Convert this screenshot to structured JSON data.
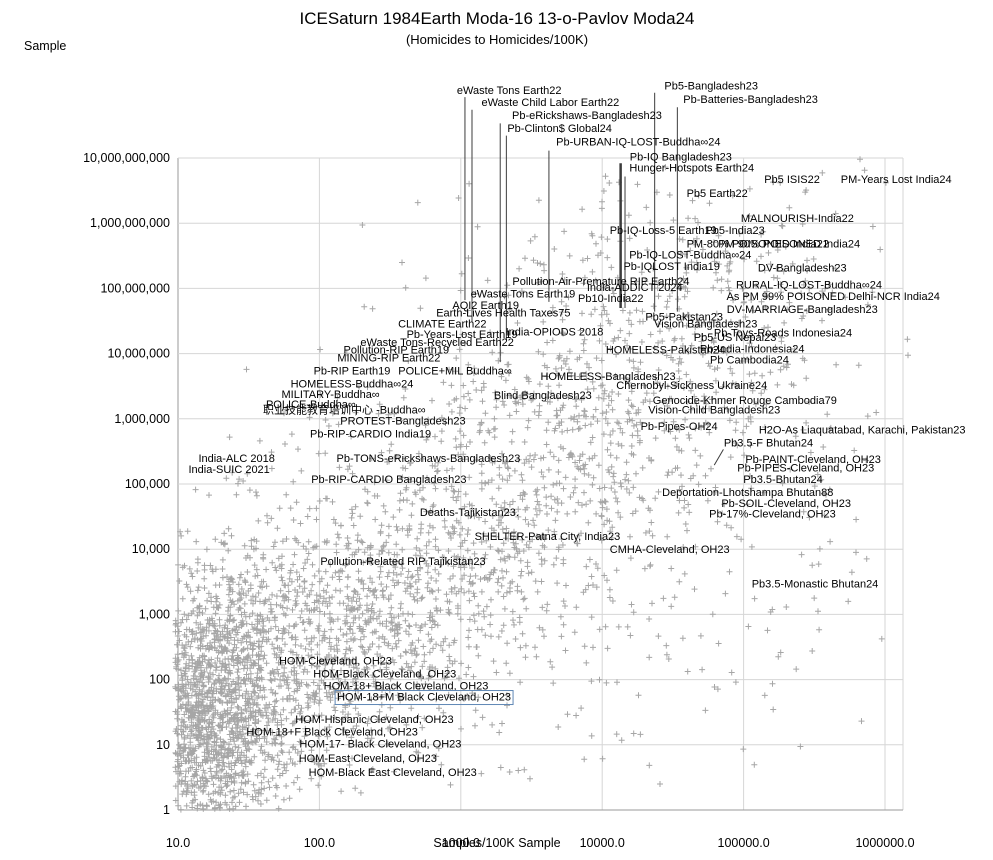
{
  "title": "ICESaturn 1984Earth Moda-16 13-o-Pavlov Moda24",
  "subtitle": "(Homicides to Homicides/100K)",
  "y_axis_title": "Sample",
  "x_axis_title": "Samples/100K Sample",
  "chart_data": {
    "type": "scatter",
    "x_scale": "log",
    "y_scale": "log",
    "x_range": [
      10,
      1000000
    ],
    "y_range": [
      1,
      10000000000
    ],
    "grid": true,
    "legend": "none",
    "x_ticks": [
      "10.0",
      "100.0",
      "1000.0",
      "10000.0",
      "100000.0",
      "1000000.0"
    ],
    "y_ticks": [
      "1",
      "10",
      "100",
      "1,000",
      "10,000",
      "100,000",
      "1,000,000",
      "10,000,000",
      "100,000,000",
      "1,000,000,000",
      "10,000,000,000"
    ],
    "marker": {
      "shape": "plus",
      "color": "#a6a6a6",
      "size": 7
    },
    "colors": {
      "grid": "#d6d6d6",
      "axis": "#9a9a9a",
      "annotation": "#222222",
      "leader": "#3c3c3c",
      "selection_box": "#5f87b5"
    },
    "point_cloud": {
      "seed": 1234,
      "bounds": {
        "lx": [
          0.98,
          6.18
        ],
        "ly": [
          0.0,
          10.05
        ]
      },
      "clusters": [
        {
          "n": 1600,
          "cx": 1.22,
          "cy": 1.4,
          "sx": 0.28,
          "sy": 1.05
        },
        {
          "n": 650,
          "cx": 1.8,
          "cy": 2.3,
          "sx": 0.45,
          "sy": 0.9
        },
        {
          "n": 550,
          "cx": 2.5,
          "cy": 3.2,
          "sx": 0.55,
          "sy": 1.0
        },
        {
          "n": 420,
          "cx": 3.2,
          "cy": 4.4,
          "sx": 0.6,
          "sy": 1.1
        },
        {
          "n": 330,
          "cx": 3.9,
          "cy": 5.8,
          "sx": 0.6,
          "sy": 1.2
        },
        {
          "n": 240,
          "cx": 4.5,
          "cy": 7.0,
          "sx": 0.55,
          "sy": 1.1
        },
        {
          "n": 120,
          "cx": 5.1,
          "cy": 8.0,
          "sx": 0.5,
          "sy": 0.9
        },
        {
          "n": 90,
          "cx": 4.2,
          "cy": 2.6,
          "sx": 0.8,
          "sy": 1.2
        },
        {
          "n": 60,
          "cx": 5.3,
          "cy": 5.0,
          "sx": 0.5,
          "sy": 1.2
        },
        {
          "n": 60,
          "cx": 2.9,
          "cy": 6.3,
          "sx": 0.8,
          "sy": 0.8
        },
        {
          "n": 40,
          "cx": 1.3,
          "cy": 4.3,
          "sx": 0.3,
          "sy": 0.9
        },
        {
          "n": 30,
          "cx": 3.7,
          "cy": 8.8,
          "sx": 0.55,
          "sy": 0.6
        }
      ]
    },
    "annotations": [
      {
        "t": "eWaste Tons Earth22",
        "x": 2200,
        "y": 110000000000.0,
        "leader": [
          1070,
          86000000000.0,
          66000000.0
        ]
      },
      {
        "t": "eWaste Child Labor Earth22",
        "x": 4300,
        "y": 72000000000.0,
        "leader": [
          1200,
          55000000000.0,
          31000000.0
        ]
      },
      {
        "t": "Pb-eRickshaws-Bangladesh23",
        "x": 7800,
        "y": 46000000000.0,
        "leader": [
          1900,
          34000000000.0,
          7400000.0
        ]
      },
      {
        "t": "Pb-Clinton$ Global24",
        "x": 5000,
        "y": 29000000000.0,
        "leader": [
          2100,
          22000000000.0,
          16000000.0
        ]
      },
      {
        "t": "Pb-URBAN-IQ-LOST-Buddha∞24",
        "x": 18000,
        "y": 18000000000.0,
        "leader": [
          4200,
          13000000000.0,
          62000000.0
        ]
      },
      {
        "t": "Pb5-Bangladesh23",
        "x": 59000,
        "y": 130000000000.0,
        "leader": [
          23500,
          100000000000.0,
          44000000.0
        ]
      },
      {
        "t": "Pb-Batteries-Bangladesh23",
        "x": 112000,
        "y": 81000000000.0,
        "leader": [
          34000,
          60000000000.0,
          44000000.0
        ]
      },
      {
        "t": "Pb-IQ Bangladesh23",
        "x": 36000,
        "y": 10500000000.0,
        "leader": [
          13500,
          8300000000.0,
          50000000.0
        ],
        "leader_w": 2.5
      },
      {
        "t": "Hunger-Hotspots Earth24",
        "x": 43000,
        "y": 7100000000.0,
        "leader": [
          14500,
          5200000000.0,
          50000000.0
        ]
      },
      {
        "t": "Pb5 ISIS22",
        "x": 220000,
        "y": 4800000000.0
      },
      {
        "t": "PM-Years Lost India24",
        "x": 1200000,
        "y": 4800000000.0
      },
      {
        "t": "Pb5 Earth22",
        "x": 65000,
        "y": 2900000000.0
      },
      {
        "t": "MALNOURISH-India22",
        "x": 240000,
        "y": 1200000000.0
      },
      {
        "t": "Pb-IQ-Loss-5 Earth19",
        "x": 27000,
        "y": 780000000.0
      },
      {
        "t": "Pb5-India23",
        "x": 87000,
        "y": 780000000.0
      },
      {
        "t": "PM-80% POISONED India22",
        "x": 126000,
        "y": 490000000.0
      },
      {
        "t": "PM 90% POISONED India24",
        "x": 210000,
        "y": 490000000.0
      },
      {
        "t": "Pb-IQ-LOST-Buddha∞24",
        "x": 42000,
        "y": 330000000.0
      },
      {
        "t": "DV-Bangladesh23",
        "x": 260000,
        "y": 210000000.0
      },
      {
        "t": "Pb-IQLOST India19",
        "x": 31000,
        "y": 220000000.0
      },
      {
        "t": "Pollution-Air-Premature RIP Earth24",
        "x": 9800,
        "y": 130000000.0
      },
      {
        "t": "RURAL-IQ-LOST-Buddha∞24",
        "x": 290000,
        "y": 115000000.0
      },
      {
        "t": "India-ADDICT 2024",
        "x": 17000,
        "y": 105000000.0
      },
      {
        "t": "As PM 99% POISONED Delhi-NCR India24",
        "x": 430000,
        "y": 76000000.0
      },
      {
        "t": "eWaste Tons Earth19",
        "x": 2750,
        "y": 83000000.0
      },
      {
        "t": "Pb10-India22",
        "x": 11500,
        "y": 71000000.0
      },
      {
        "t": "AQI2 Earth19",
        "x": 1500,
        "y": 56000000.0
      },
      {
        "t": "DV-MARRIAGE-Bangladesh23",
        "x": 260000,
        "y": 48000000.0
      },
      {
        "t": "Earth-Lives Health Taxes75",
        "x": 2000,
        "y": 43000000.0
      },
      {
        "t": "Pb5-Pakistan23",
        "x": 38000,
        "y": 37000000.0
      },
      {
        "t": "CLIMATE Earth22",
        "x": 740,
        "y": 29000000.0
      },
      {
        "t": "Vision Bangladesh23",
        "x": 54000,
        "y": 29000000.0
      },
      {
        "t": "Pb-Toys-Roads Indonesia24",
        "x": 190000,
        "y": 21000000.0
      },
      {
        "t": "Pb-Years-Lost Earth19",
        "x": 1020,
        "y": 20000000.0
      },
      {
        "t": "India-OPIODS 2018",
        "x": 4600,
        "y": 22000000.0
      },
      {
        "t": "Pb5-US Nepal23",
        "x": 87000,
        "y": 18000000.0
      },
      {
        "t": "eWaste Tons-Recycled Earth22",
        "x": 680,
        "y": 15000000.0
      },
      {
        "t": "Pollution-RIP Earth19",
        "x": 350,
        "y": 11500000.0
      },
      {
        "t": "HOMELESS-Pakistan24",
        "x": 28000,
        "y": 11500000.0
      },
      {
        "t": "Pb-India-Indonesia24",
        "x": 115000,
        "y": 12000000.0
      },
      {
        "t": "MINING-RIP Earth22",
        "x": 310,
        "y": 8700000.0
      },
      {
        "t": "Pb Cambodia24",
        "x": 110000,
        "y": 8100000.0
      },
      {
        "t": "Pb-RIP Earth19",
        "x": 170,
        "y": 5500000.0
      },
      {
        "t": "POLICE+MIL Buddha∞",
        "x": 910,
        "y": 5500000.0
      },
      {
        "t": "HOMELESS-Bangladesh23",
        "x": 11000,
        "y": 4500000.0
      },
      {
        "t": "HOMELESS-Buddha∞24",
        "x": 170,
        "y": 3500000.0
      },
      {
        "t": "Chernobyl-Sickness Ukraine24",
        "x": 43000,
        "y": 3300000.0
      },
      {
        "t": "MILITARY-Buddha∞",
        "x": 120,
        "y": 2400000.0
      },
      {
        "t": "Blind Bangladesh23",
        "x": 3800,
        "y": 2300000.0
      },
      {
        "t": "POLICE-Buddha∞",
        "x": 87,
        "y": 1700000.0
      },
      {
        "t": "Genocide-Khmer Rouge Cambodia79",
        "x": 102000,
        "y": 1950000.0
      },
      {
        "t": "职业技能教育培训中心 -Buddha∞",
        "x": 150,
        "y": 1400000.0
      },
      {
        "t": "Vision-Child Bangladesh23",
        "x": 62000,
        "y": 1400000.0
      },
      {
        "t": "PROTEST-Bangladesh23",
        "x": 390,
        "y": 950000.0
      },
      {
        "t": "Pb-Pipes-OH24",
        "x": 35000,
        "y": 780000.0
      },
      {
        "t": "H2O-As Liaquatabad, Karachi, Pakistan23",
        "x": 690000,
        "y": 680000.0
      },
      {
        "t": "Pb-RIP-CARDIO India19",
        "x": 230,
        "y": 600000.0
      },
      {
        "t": "Pb3.5-F Bhutan24",
        "x": 150000,
        "y": 430000.0
      },
      {
        "t": "India-ALC 2018",
        "x": 26,
        "y": 250000.0
      },
      {
        "t": "Pb-TONS-eRickshaws-Bangladesh23",
        "x": 590,
        "y": 250000.0
      },
      {
        "t": "Pb-PAINT-Cleveland, OH23",
        "x": 310000,
        "y": 240000.0,
        "dleader": [
          62000,
          195000,
          72000,
          340000
        ]
      },
      {
        "t": "India-SUIC 2021",
        "x": 23,
        "y": 170000.0
      },
      {
        "t": "Pb-PIPES-Cleveland, OH23",
        "x": 275000,
        "y": 180000.0
      },
      {
        "t": "Pb-RIP-CARDIO Bangladesh23",
        "x": 310,
        "y": 120000.0
      },
      {
        "t": "Pb3.5-Bhutan24",
        "x": 190000,
        "y": 120000.0
      },
      {
        "t": "Deportation-Lhotshampa Bhutan88",
        "x": 107000,
        "y": 76000.0
      },
      {
        "t": "Pb-SOIL-Cleveland, OH23",
        "x": 200000,
        "y": 51000.0
      },
      {
        "t": "Deaths-Tajikistan23.",
        "x": 1150,
        "y": 37000.0
      },
      {
        "t": "Pb-17%-Cleveland, OH23",
        "x": 160000,
        "y": 35000.0
      },
      {
        "t": "SHELTER-Patna City, India23",
        "x": 4100,
        "y": 16000.0
      },
      {
        "t": "CMHA-Cleveland, OH23",
        "x": 30000,
        "y": 10000.0
      },
      {
        "t": "Pollution-Related RIP Tajikistan23",
        "x": 390,
        "y": 6600
      },
      {
        "t": "Pb3.5-Monastic Bhutan24",
        "x": 320000,
        "y": 3000
      },
      {
        "t": "HOM-Cleveland, OH23",
        "x": 130,
        "y": 195
      },
      {
        "t": "HOM-Black Cleveland, OH23",
        "x": 290,
        "y": 123
      },
      {
        "t": "HOM-18+ Black Cleveland, OH23",
        "x": 410,
        "y": 81
      },
      {
        "t": "HOM-18+M Black Cleveland, OH23",
        "x": 550,
        "y": 55,
        "boxed": true
      },
      {
        "t": "HOM-Hispanic Cleveland, OH23",
        "x": 245,
        "y": 25
      },
      {
        "t": "HOM-18+F Black Cleveland, OH23",
        "x": 123,
        "y": 16
      },
      {
        "t": "HOM-17- Black Cleveland, OH23",
        "x": 270,
        "y": 10.5
      },
      {
        "t": "HOM-East Cleveland, OH23",
        "x": 220,
        "y": 6.3
      },
      {
        "t": "HOM-Black East Cleveland, OH23",
        "x": 330,
        "y": 3.8
      }
    ]
  }
}
